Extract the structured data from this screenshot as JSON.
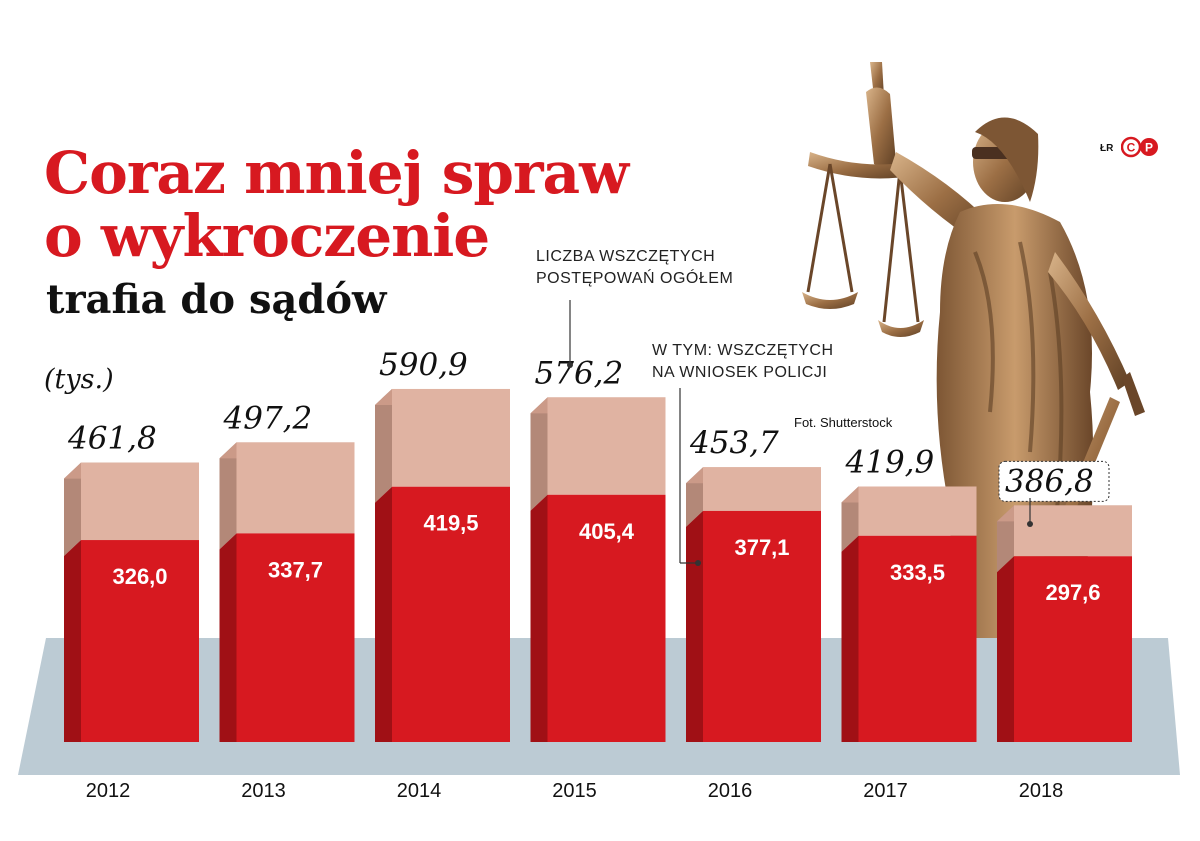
{
  "header": {
    "title_line1": "Coraz mniej spraw",
    "title_line2": "o wykroczenie",
    "subtitle": "trafia do sądów",
    "unit": "(tys.)"
  },
  "legend": {
    "total": "LICZBA WSZCZĘTYCH\nPOSTĘPOWAŃ OGÓŁEM",
    "police": "W TYM: WSZCZĘTYCH\nNA WNIOSEK POLICJI"
  },
  "credits": {
    "photo": "Fot. Shutterstock",
    "author": "ŁR",
    "brand": "CP"
  },
  "colors": {
    "police_front": "#d71920",
    "police_side": "#a01015",
    "total_front": "#e0b3a2",
    "total_side": "#b38878",
    "total_top": "#cb9a88",
    "floor": "#bccbd4"
  },
  "chart_data": {
    "type": "bar",
    "categories": [
      "2012",
      "2013",
      "2014",
      "2015",
      "2016",
      "2017",
      "2018"
    ],
    "series": [
      {
        "name": "LICZBA WSZCZĘTYCH POSTĘPOWAŃ OGÓŁEM",
        "values": [
          461.8,
          497.2,
          590.9,
          576.2,
          453.7,
          419.9,
          386.8
        ]
      },
      {
        "name": "W TYM: WSZCZĘTYCH NA WNIOSEK POLICJI",
        "values": [
          326.0,
          337.7,
          419.5,
          405.4,
          377.1,
          333.5,
          297.6
        ]
      }
    ],
    "value_labels_total": [
      "461,8",
      "497,2",
      "590,9",
      "576,2",
      "453,7",
      "419,9",
      "386,8"
    ],
    "value_labels_police": [
      "326,0",
      "337,7",
      "419,5",
      "405,4",
      "377,1",
      "333,5",
      "297,6"
    ],
    "ylabel": "(tys.)",
    "ylim": [
      0,
      600
    ],
    "grid": false,
    "legend": "top-right annotations",
    "highlight_category": "2018"
  }
}
